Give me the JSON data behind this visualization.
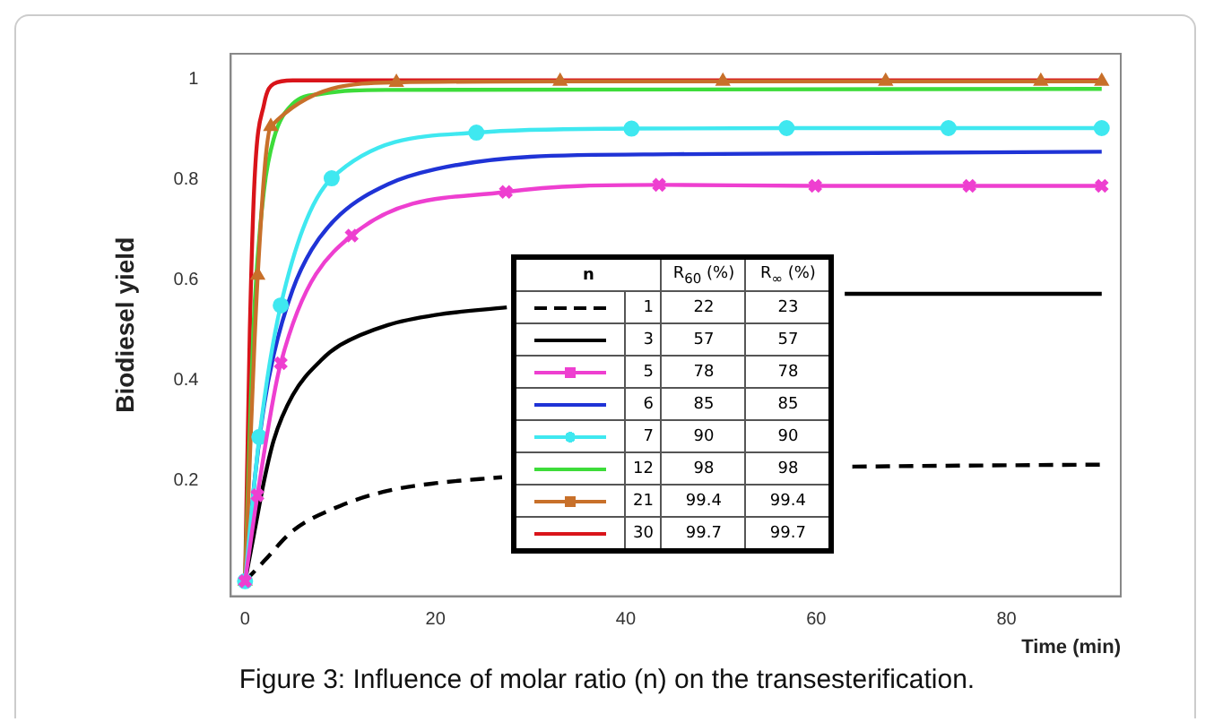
{
  "chart_data": {
    "type": "line",
    "xlabel": "Time (min)",
    "ylabel": "Biodiesel yield",
    "legend_title": "n",
    "xlim": [
      -1.5,
      92
    ],
    "ylim": [
      -0.03,
      1.05
    ],
    "xticks": [
      0,
      20,
      40,
      60,
      80
    ],
    "yticks": [
      0.2,
      0.4,
      0.6,
      0.8,
      1
    ],
    "grid": false,
    "legend": "bottom",
    "series": [
      {
        "name": "1",
        "color": "#000000",
        "line_style": "dashed",
        "marker": "none",
        "x": [
          0,
          2,
          5,
          10,
          15,
          20,
          27,
          40,
          63.8,
          75,
          90
        ],
        "values": [
          0,
          0.04,
          0.1,
          0.15,
          0.18,
          0.195,
          0.207,
          null,
          0.228,
          0.23,
          0.232
        ]
      },
      {
        "name": "3",
        "color": "#000000",
        "line_style": "solid",
        "marker": "none",
        "x": [
          0,
          1,
          2,
          3,
          5,
          8,
          10,
          15,
          20,
          27.5,
          40,
          63,
          90
        ],
        "values": [
          0,
          0.1,
          0.2,
          0.28,
          0.37,
          0.44,
          0.47,
          0.51,
          0.53,
          0.545,
          null,
          0.572,
          0.572
        ]
      },
      {
        "name": "5",
        "color": "#ee3fd0",
        "line_style": "solid",
        "marker": "cross",
        "x": [
          0,
          1.3,
          3.75,
          11.2,
          27.4,
          43.5,
          59.9,
          76.1,
          90
        ],
        "values": [
          0,
          0.171,
          0.434,
          0.688,
          0.775,
          0.789,
          0.787,
          0.787,
          0.787
        ]
      },
      {
        "name": "6",
        "color": "#1f33d6",
        "line_style": "solid",
        "marker": "none",
        "x": [
          0,
          1,
          2,
          3,
          5,
          7,
          10,
          15,
          20,
          30,
          45,
          90
        ],
        "values": [
          0,
          0.2,
          0.35,
          0.45,
          0.58,
          0.66,
          0.73,
          0.79,
          0.82,
          0.845,
          0.85,
          0.855
        ]
      },
      {
        "name": "7",
        "color": "#3fe8f0",
        "line_style": "solid",
        "marker": "circle",
        "x": [
          0,
          1.5,
          3.75,
          9.1,
          24.3,
          40.6,
          56.9,
          73.9,
          90
        ],
        "values": [
          0,
          0.287,
          0.549,
          0.802,
          0.893,
          0.901,
          0.902,
          0.902,
          0.902
        ]
      },
      {
        "name": "12",
        "color": "#3ddc3a",
        "line_style": "solid",
        "marker": "none",
        "x": [
          0,
          0.5,
          1,
          2,
          3,
          5,
          8,
          15,
          90
        ],
        "values": [
          0,
          0.3,
          0.55,
          0.78,
          0.88,
          0.95,
          0.97,
          0.978,
          0.98
        ]
      },
      {
        "name": "21",
        "color": "#c8702a",
        "line_style": "solid",
        "marker": "triangle",
        "x": [
          0,
          1.33,
          2.7,
          15.9,
          33.1,
          50.2,
          67.3,
          83.6,
          90
        ],
        "values": [
          0,
          0.609,
          0.905,
          0.993,
          0.995,
          0.995,
          0.995,
          0.995,
          0.995
        ]
      },
      {
        "name": "30",
        "color": "#d9141a",
        "line_style": "solid",
        "marker": "none",
        "x": [
          0,
          0.5,
          1,
          2,
          3,
          5,
          90
        ],
        "values": [
          0,
          0.5,
          0.8,
          0.95,
          0.99,
          0.997,
          0.997
        ]
      }
    ],
    "annotations": [
      "R$_{60}$ (%)",
      "R$_{∞}$ (%)",
      "22",
      "23",
      "57",
      "57",
      "78",
      "78",
      "85",
      "85",
      "90",
      "90",
      "98",
      "98",
      "99.4",
      "99.4",
      "99.7",
      "99.7",
      "Figure 3: Influence of molar ratio (n) on the transesterification."
    ]
  }
}
